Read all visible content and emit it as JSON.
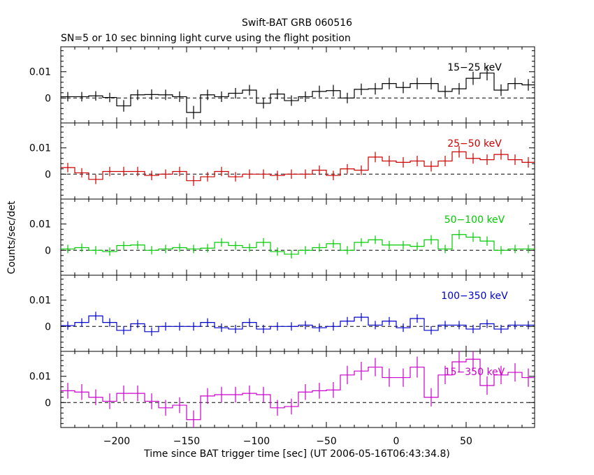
{
  "chart_data": {
    "type": "line",
    "title": "Swift-BAT GRB 060516",
    "subtitle": "SN=5 or 10 sec binning light curve using the flight position",
    "xlabel": "Time since BAT trigger time [sec] (UT 2006-05-16T06:43:34.8)",
    "ylabel": "Counts/sec/det",
    "xlim": [
      -240,
      99
    ],
    "xticks": [
      -200,
      -150,
      -100,
      -50,
      0,
      50
    ],
    "xtick_labels": [
      "−200",
      "−150",
      "−100",
      "−50",
      "0",
      "50"
    ],
    "ylim": [
      -0.0095,
      0.0195
    ],
    "yticks": [
      0,
      0.01
    ],
    "ytick_labels": [
      "0",
      "0.01"
    ],
    "zero_line": "dashed",
    "panels": [
      {
        "name": "15−25 keV",
        "color": "#000000",
        "edges": [
          -240,
          -230,
          -220,
          -210,
          -200,
          -190,
          -180,
          -170,
          -160,
          -150,
          -140,
          -130,
          -120,
          -110,
          -100,
          -90,
          -80,
          -70,
          -60,
          -50,
          -40,
          -30,
          -20,
          -10,
          0,
          10,
          20,
          30,
          40,
          50,
          60,
          70,
          80,
          90
        ],
        "values": [
          0.0005,
          0.0005,
          0.0008,
          0.0002,
          -0.003,
          0.0012,
          0.0013,
          0.0012,
          0.0005,
          -0.0055,
          0.0012,
          0.0005,
          0.0018,
          0.003,
          -0.002,
          0.0015,
          -0.001,
          0.0005,
          0.0025,
          0.0028,
          0,
          0.0033,
          0.0035,
          0.0055,
          0.004,
          0.0055,
          0.0055,
          0.0025,
          0.0035,
          0.0075,
          0.0095,
          0.003,
          0.0055,
          0.005
        ],
        "errors": [
          0.0018,
          0.0018,
          0.0018,
          0.0018,
          0.0022,
          0.002,
          0.002,
          0.002,
          0.002,
          0.0025,
          0.002,
          0.002,
          0.002,
          0.002,
          0.002,
          0.002,
          0.002,
          0.002,
          0.0022,
          0.0022,
          0.002,
          0.0022,
          0.0022,
          0.0022,
          0.0022,
          0.0022,
          0.0022,
          0.0022,
          0.0022,
          0.0025,
          0.0028,
          0.0022,
          0.0022,
          0.0022
        ]
      },
      {
        "name": "25−50 keV",
        "color": "#cc0000",
        "edges": [
          -240,
          -230,
          -220,
          -210,
          -200,
          -190,
          -180,
          -170,
          -160,
          -150,
          -140,
          -130,
          -120,
          -110,
          -100,
          -90,
          -80,
          -70,
          -60,
          -50,
          -40,
          -30,
          -20,
          -10,
          0,
          10,
          20,
          30,
          40,
          50,
          60,
          70,
          80,
          90
        ],
        "values": [
          0.0025,
          0.0005,
          -0.002,
          0.001,
          0.001,
          0.001,
          -0.0005,
          0,
          0.001,
          -0.0025,
          -0.001,
          0.001,
          -0.001,
          0,
          0,
          -0.0005,
          0,
          0,
          0.0015,
          -0.0005,
          0.002,
          0.0015,
          0.0065,
          0.005,
          0.0045,
          0.005,
          0.003,
          0.005,
          0.0085,
          0.006,
          0.0055,
          0.0075,
          0.0055,
          0.0045
        ],
        "errors": [
          0.0018,
          0.0018,
          0.0018,
          0.0018,
          0.0018,
          0.0018,
          0.0018,
          0.0018,
          0.0018,
          0.002,
          0.0018,
          0.0018,
          0.0018,
          0.0018,
          0.0018,
          0.0018,
          0.0018,
          0.0018,
          0.0018,
          0.0018,
          0.0018,
          0.0018,
          0.002,
          0.002,
          0.002,
          0.002,
          0.002,
          0.002,
          0.0022,
          0.002,
          0.002,
          0.002,
          0.002,
          0.002
        ]
      },
      {
        "name": "50−100 keV",
        "color": "#00cc00",
        "edges": [
          -240,
          -230,
          -220,
          -210,
          -200,
          -190,
          -180,
          -170,
          -160,
          -150,
          -140,
          -130,
          -120,
          -110,
          -100,
          -90,
          -80,
          -70,
          -60,
          -50,
          -40,
          -30,
          -20,
          -10,
          0,
          10,
          20,
          30,
          40,
          50,
          60,
          70,
          80,
          90
        ],
        "values": [
          0.0005,
          0.001,
          0,
          -0.0005,
          0.0018,
          0.002,
          0,
          0.0005,
          0.001,
          0.0005,
          0.0008,
          0.003,
          0.0018,
          0.001,
          0.003,
          -0.0005,
          -0.0015,
          0,
          0.001,
          0.0025,
          0,
          0.003,
          0.004,
          0.002,
          0.002,
          0.0015,
          0.004,
          0.0005,
          0.006,
          0.005,
          0.0035,
          0,
          0.0005,
          0.0005
        ],
        "errors": [
          0.0016,
          0.0016,
          0.0016,
          0.0016,
          0.0016,
          0.0016,
          0.0016,
          0.0016,
          0.0016,
          0.0016,
          0.0016,
          0.0016,
          0.0016,
          0.0016,
          0.0016,
          0.0016,
          0.0016,
          0.0016,
          0.0016,
          0.0016,
          0.0016,
          0.0016,
          0.0016,
          0.0016,
          0.0016,
          0.0016,
          0.0018,
          0.0016,
          0.0018,
          0.0018,
          0.0018,
          0.0016,
          0.0016,
          0.0016
        ]
      },
      {
        "name": "100−350 keV",
        "color": "#0000cc",
        "edges": [
          -240,
          -230,
          -220,
          -210,
          -200,
          -190,
          -180,
          -170,
          -160,
          -150,
          -140,
          -130,
          -120,
          -110,
          -100,
          -90,
          -80,
          -70,
          -60,
          -50,
          -40,
          -30,
          -20,
          -10,
          0,
          10,
          20,
          30,
          40,
          50,
          60,
          70,
          80,
          90
        ],
        "values": [
          0.0003,
          0.0015,
          0.004,
          0.0015,
          -0.0015,
          0.001,
          -0.002,
          0,
          0,
          0,
          0.0015,
          -0.0005,
          -0.001,
          0.0015,
          -0.001,
          0,
          0,
          0.0005,
          -0.0005,
          0,
          0.002,
          0.0035,
          0.0005,
          0.002,
          -0.0005,
          0.003,
          -0.0015,
          0.0005,
          0.0005,
          -0.001,
          0.001,
          -0.001,
          0.0005,
          0.0005
        ],
        "errors": [
          0.0016,
          0.0016,
          0.0016,
          0.0016,
          0.0016,
          0.0016,
          0.0016,
          0.0016,
          0.0016,
          0.0016,
          0.0016,
          0.0016,
          0.0016,
          0.0016,
          0.0016,
          0.0016,
          0.0016,
          0.0016,
          0.0016,
          0.0016,
          0.0016,
          0.0016,
          0.0016,
          0.0016,
          0.0016,
          0.0016,
          0.0016,
          0.0016,
          0.0016,
          0.0016,
          0.0016,
          0.0016,
          0.0016,
          0.0016
        ]
      },
      {
        "name": "15−350 keV",
        "color": "#cc00cc",
        "edges": [
          -240,
          -230,
          -220,
          -210,
          -200,
          -190,
          -180,
          -170,
          -160,
          -150,
          -140,
          -130,
          -120,
          -110,
          -100,
          -90,
          -80,
          -70,
          -60,
          -50,
          -40,
          -30,
          -20,
          -10,
          0,
          10,
          20,
          30,
          40,
          50,
          60,
          70,
          80,
          90
        ],
        "values": [
          0.0045,
          0.004,
          0.002,
          0.0005,
          0.0035,
          0.0035,
          0.0005,
          -0.002,
          -0.001,
          -0.0065,
          0.0025,
          0.003,
          0.003,
          0.0035,
          0.003,
          -0.002,
          -0.0015,
          0.004,
          0.0045,
          0.0048,
          0.0105,
          0.012,
          0.0135,
          0.0095,
          0.0095,
          0.0135,
          0.002,
          0.0105,
          0.0155,
          0.0165,
          0.0065,
          0.0105,
          0.0115,
          0.0095
        ],
        "errors": [
          0.003,
          0.003,
          0.003,
          0.003,
          0.003,
          0.003,
          0.003,
          0.003,
          0.003,
          0.0035,
          0.003,
          0.003,
          0.003,
          0.003,
          0.003,
          0.003,
          0.003,
          0.003,
          0.003,
          0.003,
          0.0035,
          0.0035,
          0.0035,
          0.0035,
          0.0035,
          0.004,
          0.0035,
          0.0035,
          0.004,
          0.004,
          0.0035,
          0.0035,
          0.0035,
          0.0035
        ]
      }
    ]
  }
}
